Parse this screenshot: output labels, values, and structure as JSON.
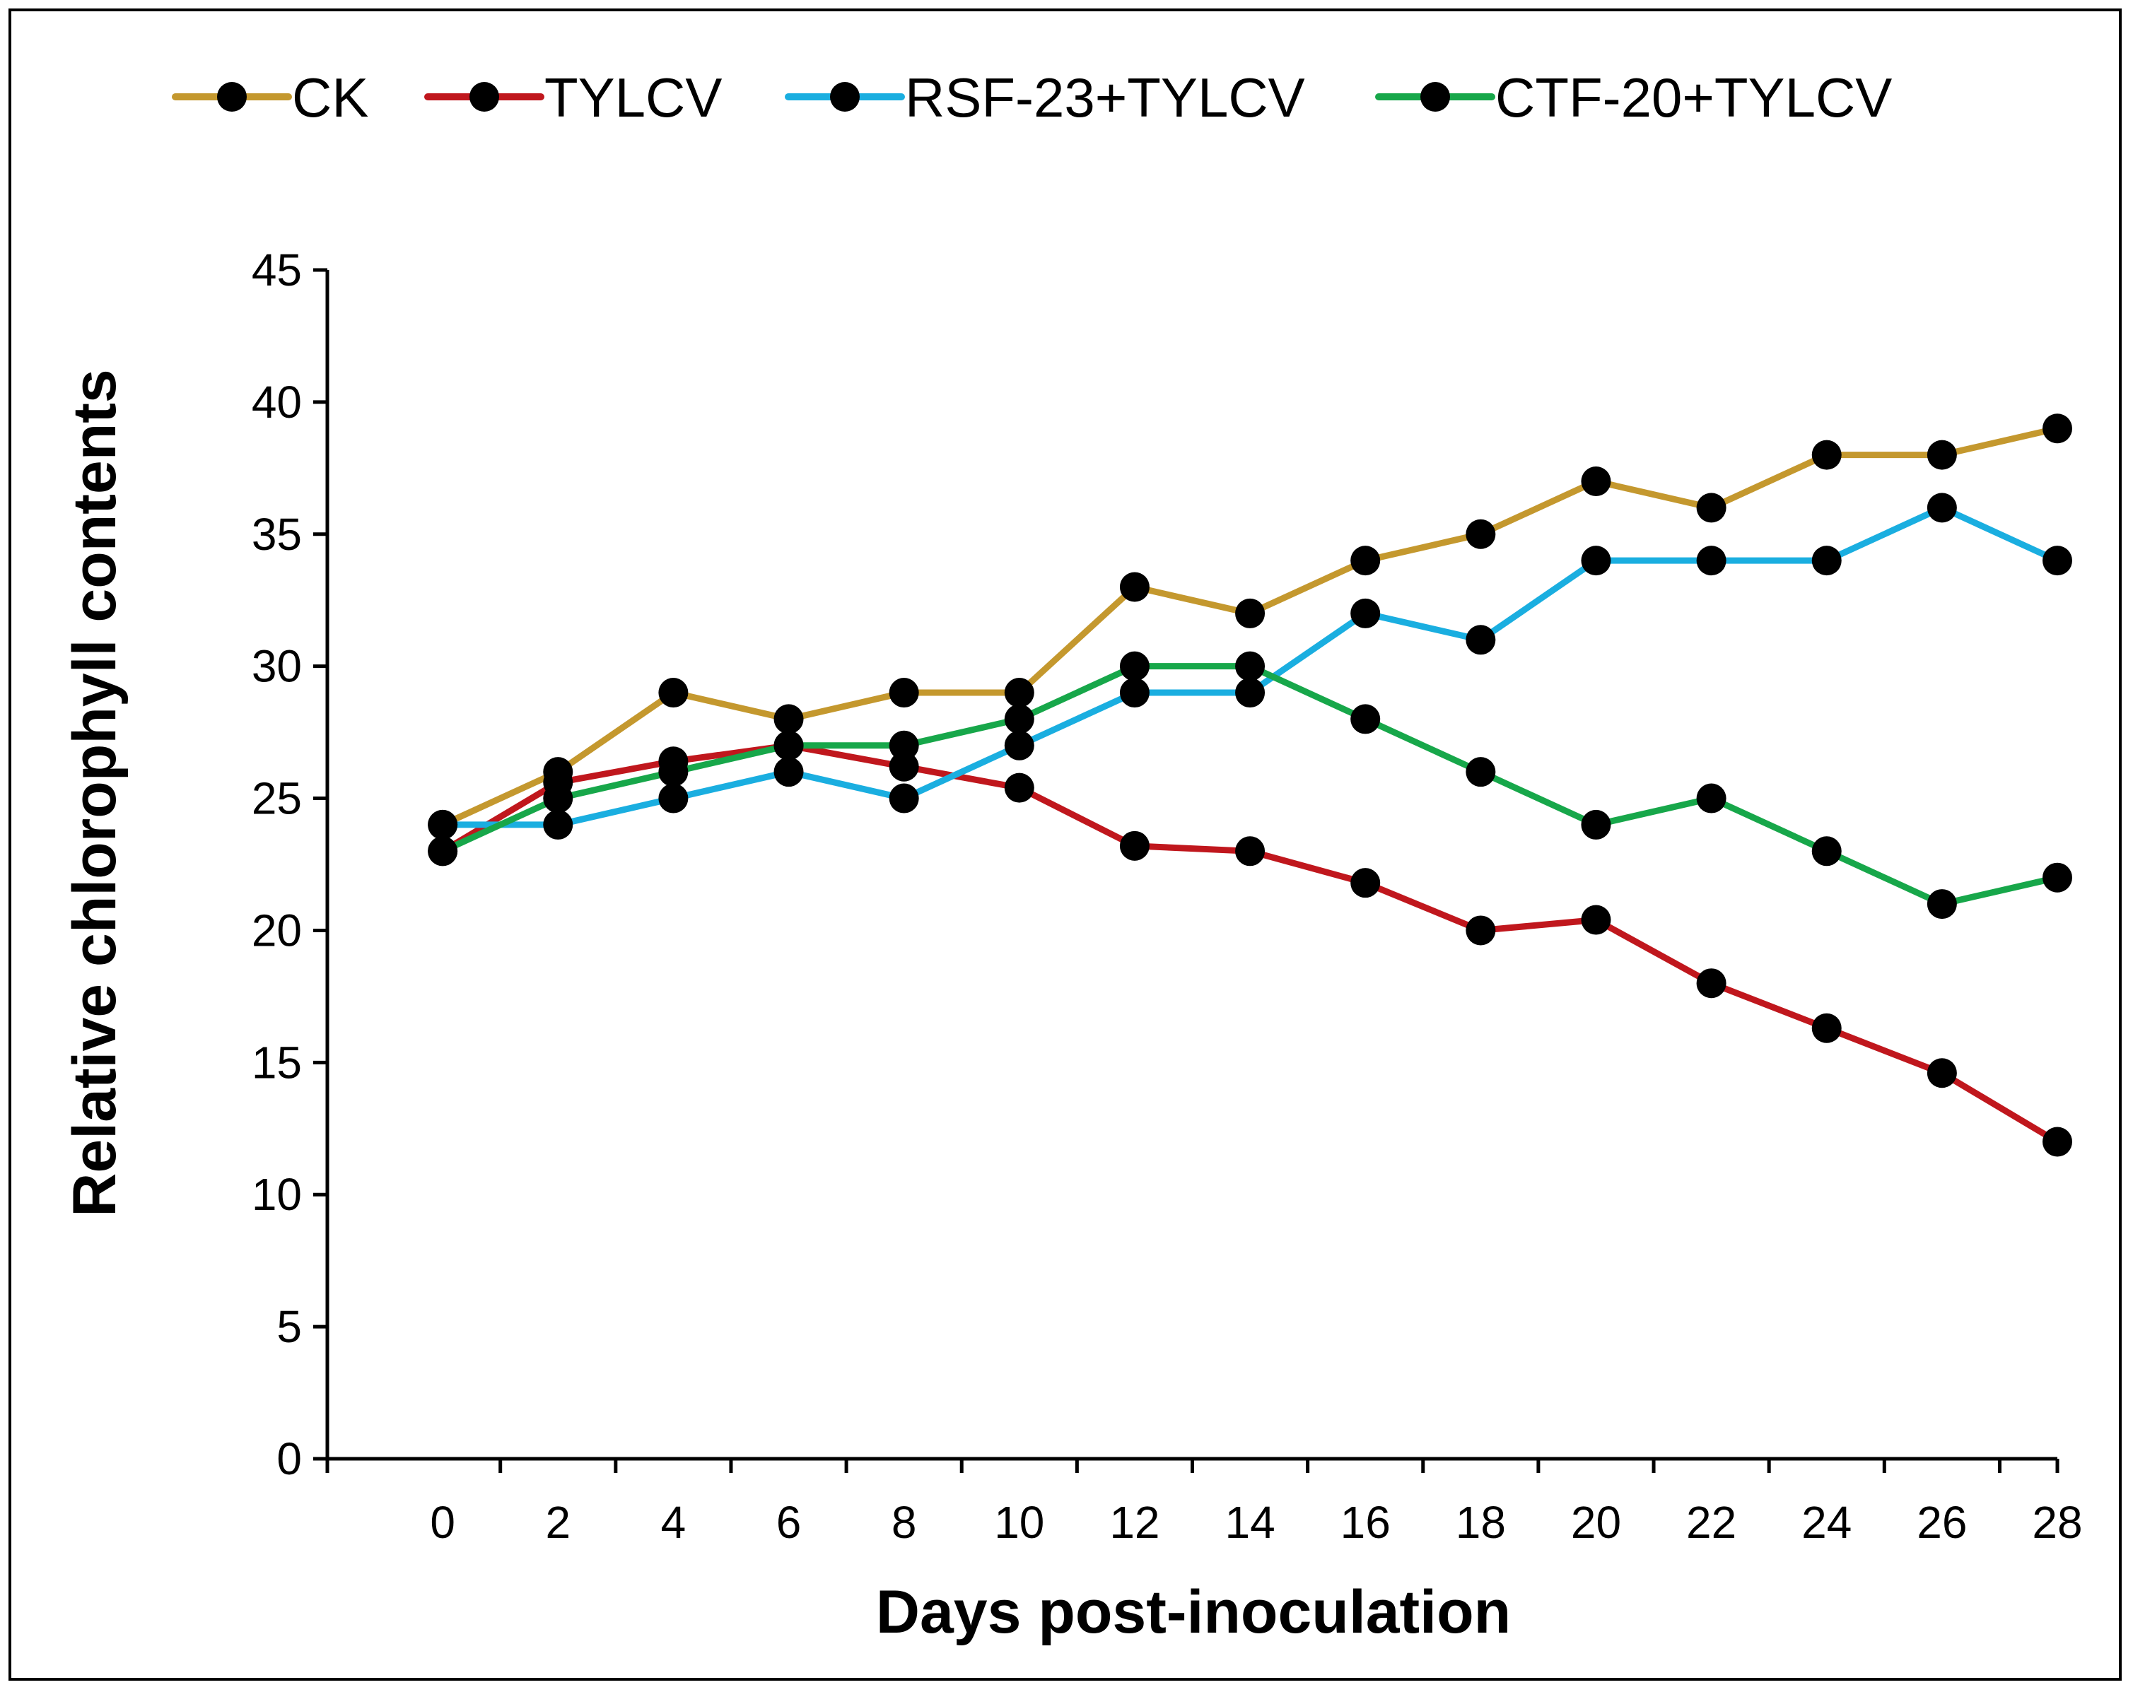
{
  "chart_data": {
    "type": "line",
    "xlabel": "Days post-inoculation",
    "ylabel": "Relative chlorophyll contents",
    "x": [
      0,
      2,
      4,
      6,
      8,
      10,
      12,
      14,
      16,
      18,
      20,
      22,
      24,
      26,
      28
    ],
    "x_tick_labels": [
      "0",
      "2",
      "4",
      "6",
      "8",
      "10",
      "12",
      "14",
      "16",
      "18",
      "20",
      "22",
      "24",
      "26",
      "28"
    ],
    "xlim": [
      -2,
      28
    ],
    "ylim": [
      0,
      45
    ],
    "y_ticks": [
      0,
      5,
      10,
      15,
      20,
      25,
      30,
      35,
      40,
      45
    ],
    "grid": false,
    "legend_position": "top",
    "marker_color": "#000000",
    "series": [
      {
        "name": "CK",
        "color": "#c4982e",
        "values": [
          24,
          26,
          29,
          28,
          29,
          29,
          33,
          32,
          34,
          35,
          37,
          36,
          38,
          38,
          39
        ]
      },
      {
        "name": "TYLCV",
        "color": "#c0171d",
        "values": [
          23,
          25.6,
          26.4,
          27,
          26.2,
          25.4,
          23.2,
          23,
          21.8,
          20,
          20.4,
          18,
          16.3,
          14.6,
          12
        ]
      },
      {
        "name": "RSF-23+TYLCV",
        "color": "#1aaee0",
        "values": [
          24,
          24,
          25,
          26,
          25,
          27,
          29,
          29,
          32,
          31,
          34,
          34,
          34,
          36,
          34
        ]
      },
      {
        "name": "CTF-20+TYLCV",
        "color": "#17a74a",
        "values": [
          23,
          25,
          26,
          27,
          27,
          28,
          30,
          30,
          28,
          26,
          24,
          25,
          23,
          21,
          22
        ]
      }
    ]
  }
}
